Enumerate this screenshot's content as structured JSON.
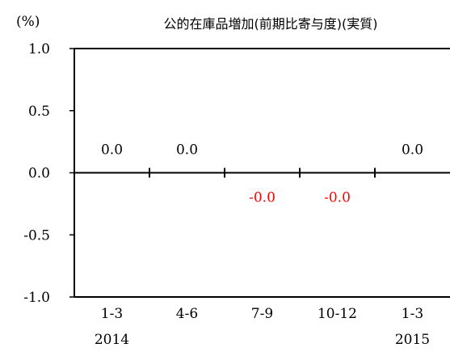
{
  "chart_data": {
    "type": "bar",
    "title": "公的在庫品増加(前期比寄与度)(実質)",
    "unit_label": "(%)",
    "categories": [
      "1-3",
      "4-6",
      "7-9",
      "10-12",
      "1-3"
    ],
    "years": [
      "2014",
      "",
      "",
      "",
      "2015"
    ],
    "values": [
      0.0,
      0.0,
      -0.0,
      -0.0,
      0.0
    ],
    "data_labels": [
      "0.0",
      "0.0",
      "-0.0",
      "-0.0",
      "0.0"
    ],
    "ylim": [
      -1.0,
      1.0
    ],
    "yticks": [
      1.0,
      0.5,
      0.0,
      -0.5,
      -1.0
    ],
    "ytick_labels": [
      "1.0",
      "0.5",
      "0.0",
      "-0.5",
      "-1.0"
    ],
    "xlabel": "",
    "ylabel": "",
    "grid": false,
    "colors": {
      "positive_label": "#000000",
      "negative_label": "#ff0000",
      "axis": "#000000"
    }
  }
}
